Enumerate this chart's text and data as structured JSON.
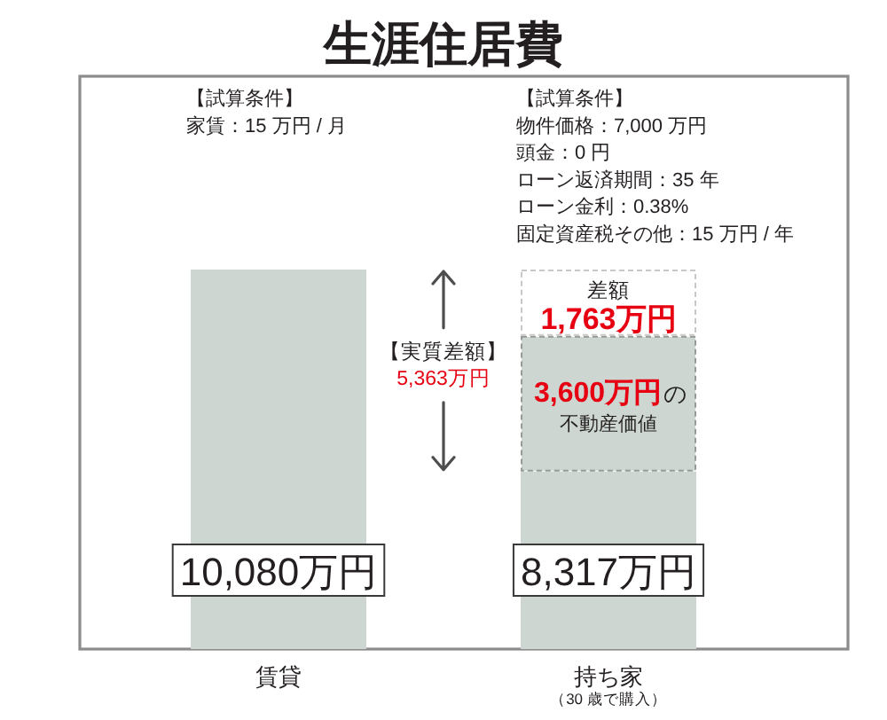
{
  "chart_data": {
    "type": "bar",
    "title": "生涯住居費",
    "categories": [
      "賃貸",
      "持ち家"
    ],
    "stacked": true,
    "series": [
      {
        "color": "#cdd6d1",
        "values": [
          10080,
          4717
        ],
        "value_labels": [
          "10,080万円",
          null
        ]
      },
      {
        "name": "不動産価値",
        "color": "#cdd6d1",
        "line_style": "dashed",
        "values": [
          null,
          3600
        ],
        "value_labels": [
          null,
          "3,600万円"
        ]
      },
      {
        "name": "差額",
        "color": "#ffffff",
        "line_style": "dashed",
        "values": [
          null,
          1763
        ],
        "value_labels": [
          null,
          "1,763万円"
        ]
      }
    ],
    "annotations": [
      "【試算条件】",
      "家賃：15 万円 / 月",
      "【試算条件】",
      "物件価格：7,000 万円",
      "頭金：0 円",
      "ローン返済期間：35 年",
      "ローン金利：0.38%",
      "固定資産税その他：15 万円 / 年",
      "【実質差額】",
      "5,363万円",
      "の",
      "8,317万円",
      "（30 歳で購入）"
    ]
  }
}
